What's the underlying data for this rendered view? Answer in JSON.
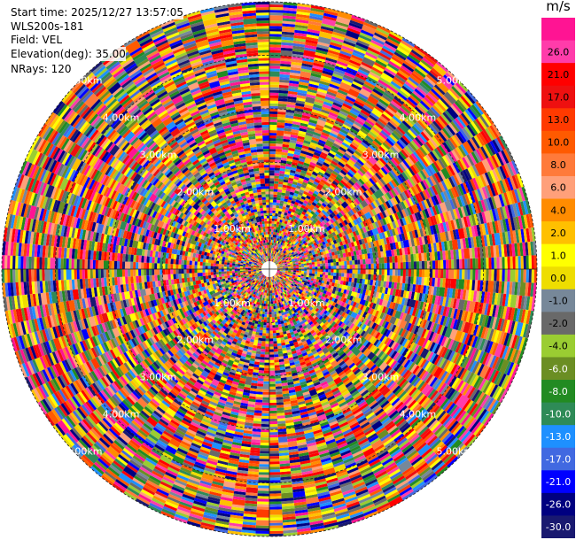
{
  "header": {
    "start_time": "Start time: 2025/12/27 13:57:05",
    "site": "WLS200s-181",
    "field": "Field: VEL",
    "elevation": "Elevation(deg): 35.00",
    "nrays": "NRays: 120"
  },
  "colorbar": {
    "unit": "m/s",
    "ticks": [
      "26.0",
      "21.0",
      "17.0",
      "13.0",
      "10.0",
      "8.0",
      "6.0",
      "4.0",
      "2.0",
      "1.0",
      "0.0",
      "-1.0",
      "-2.0",
      "-4.0",
      "-6.0",
      "-8.0",
      "-10.0",
      "-13.0",
      "-17.0",
      "-21.0",
      "-26.0",
      "-30.0"
    ],
    "colors": [
      "#ff1493",
      "#ff3caa",
      "#ff0000",
      "#ee1010",
      "#ff3a00",
      "#ff5a00",
      "#ff7a3a",
      "#ffa07a",
      "#ff8c00",
      "#ffc000",
      "#ffff00",
      "#eedd00",
      "#778899",
      "#696969",
      "#9acd32",
      "#6b8e23",
      "#228b22",
      "#2e8b57",
      "#1e90ff",
      "#4169e1",
      "#0000ff",
      "#000080",
      "#191970"
    ]
  },
  "chart_data": {
    "type": "heatmap",
    "projection": "polar (PPI)",
    "field": "VEL",
    "units": "m/s",
    "color_range": [
      -30.0,
      26.0
    ],
    "range_rings_km": [
      "1.00km",
      "2.00km",
      "3.00km",
      "4.00km",
      "5.00km"
    ],
    "max_range_km": 5.0,
    "n_rays": 120,
    "n_gates": 100
  }
}
